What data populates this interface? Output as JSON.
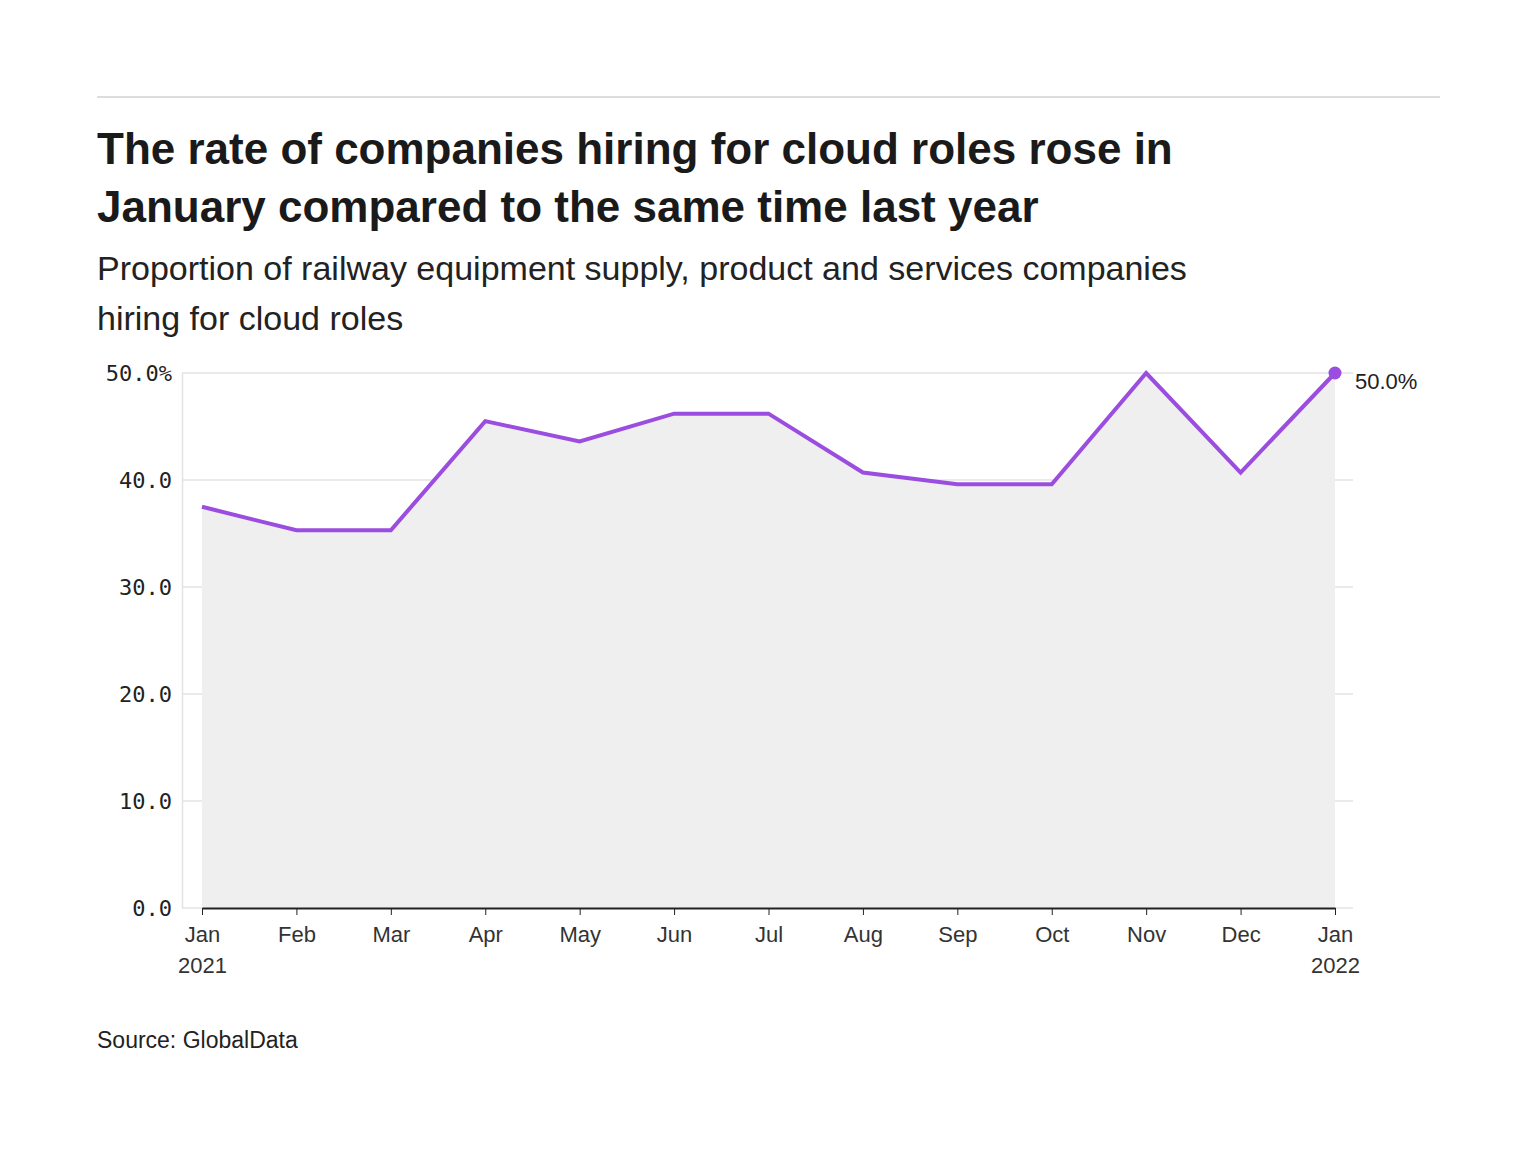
{
  "chart_data": {
    "type": "line",
    "title": "The rate of companies hiring for cloud roles rose in\nJanuary compared to the same time last year",
    "subtitle": "Proportion of railway equipment supply, product and services companies\nhiring for cloud roles",
    "source": "Source: GlobalData",
    "categories": [
      "Jan\n2021",
      "Feb",
      "Mar",
      "Apr",
      "May",
      "Jun",
      "Jul",
      "Aug",
      "Sep",
      "Oct",
      "Nov",
      "Dec",
      "Jan\n2022"
    ],
    "values": [
      37.5,
      35.3,
      35.3,
      45.5,
      43.6,
      46.2,
      46.2,
      40.7,
      39.6,
      39.6,
      50,
      40.7,
      50
    ],
    "color": "#9b4de0",
    "ylim": [
      0,
      50
    ],
    "yticks": [
      {
        "value": 0,
        "label": "0.0"
      },
      {
        "value": 10,
        "label": "10.0"
      },
      {
        "value": 20,
        "label": "20.0"
      },
      {
        "value": 30,
        "label": "30.0"
      },
      {
        "value": 40,
        "label": "40.0"
      },
      {
        "value": 50,
        "label": "50.0%"
      }
    ],
    "grid": true,
    "annotations": [
      {
        "text": "50.0%",
        "x": "Jan\n2022",
        "y": 50
      }
    ]
  }
}
